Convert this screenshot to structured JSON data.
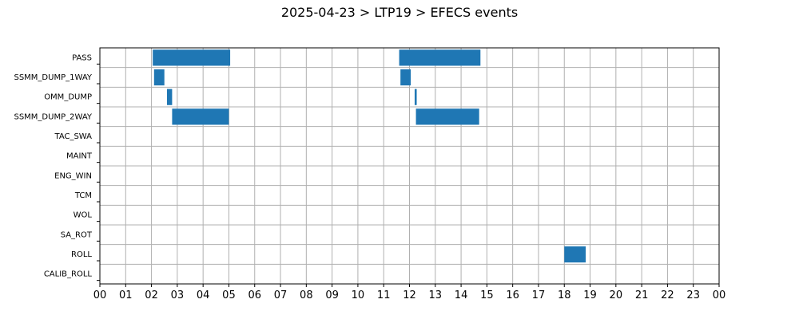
{
  "chart_data": {
    "type": "timeline",
    "title": "2025-04-23 > LTP19 > EFECS events",
    "xlabel": "",
    "ylabel": "",
    "grid": true,
    "x_range_hours": [
      0,
      24
    ],
    "x_tick_labels": [
      "00",
      "01",
      "02",
      "03",
      "04",
      "05",
      "06",
      "07",
      "08",
      "09",
      "10",
      "11",
      "12",
      "13",
      "14",
      "15",
      "16",
      "17",
      "18",
      "19",
      "20",
      "21",
      "22",
      "23",
      "00"
    ],
    "categories": [
      "PASS",
      "SSMM_DUMP_1WAY",
      "OMM_DUMP",
      "SSMM_DUMP_2WAY",
      "TAC_SWA",
      "MAINT",
      "ENG_WIN",
      "TCM",
      "WOL",
      "SA_ROT",
      "ROLL",
      "CALIB_ROLL"
    ],
    "bar_color": "#1f77b4",
    "events": [
      {
        "category": "PASS",
        "start": 2.05,
        "end": 5.05
      },
      {
        "category": "PASS",
        "start": 11.6,
        "end": 14.75
      },
      {
        "category": "SSMM_DUMP_1WAY",
        "start": 2.1,
        "end": 2.5
      },
      {
        "category": "SSMM_DUMP_1WAY",
        "start": 11.65,
        "end": 12.05
      },
      {
        "category": "OMM_DUMP",
        "start": 2.6,
        "end": 2.8
      },
      {
        "category": "OMM_DUMP",
        "start": 12.2,
        "end": 12.28
      },
      {
        "category": "SSMM_DUMP_2WAY",
        "start": 2.8,
        "end": 5.0
      },
      {
        "category": "SSMM_DUMP_2WAY",
        "start": 12.25,
        "end": 14.7
      },
      {
        "category": "ROLL",
        "start": 18.0,
        "end": 18.83
      }
    ]
  }
}
